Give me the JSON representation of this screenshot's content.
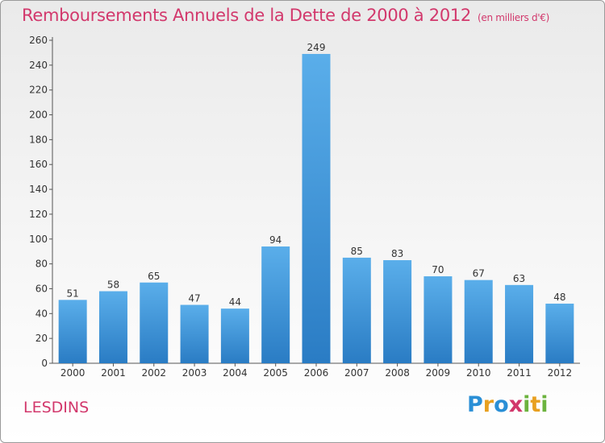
{
  "title": "Remboursements Annuels de la Dette de 2000 à 2012",
  "subtitle": "(en milliers d'€)",
  "place": "LESDINS",
  "brand": {
    "p": "P",
    "r": "r",
    "o": "o",
    "x": "x",
    "i1": "i",
    "t": "t",
    "i2": "i"
  },
  "colors": {
    "bar": "#3d93d8",
    "title": "#d2386c"
  },
  "chart_data": {
    "type": "bar",
    "title": "Remboursements Annuels de la Dette de 2000 à 2012",
    "categories": [
      "2000",
      "2001",
      "2002",
      "2003",
      "2004",
      "2005",
      "2006",
      "2007",
      "2008",
      "2009",
      "2010",
      "2011",
      "2012"
    ],
    "values": [
      51,
      58,
      65,
      47,
      44,
      94,
      249,
      85,
      83,
      70,
      67,
      63,
      48
    ],
    "ylim": [
      0,
      260
    ],
    "yticks": [
      0,
      20,
      40,
      60,
      80,
      100,
      120,
      140,
      160,
      180,
      200,
      220,
      240,
      260
    ],
    "grid": false,
    "legend": "none"
  }
}
